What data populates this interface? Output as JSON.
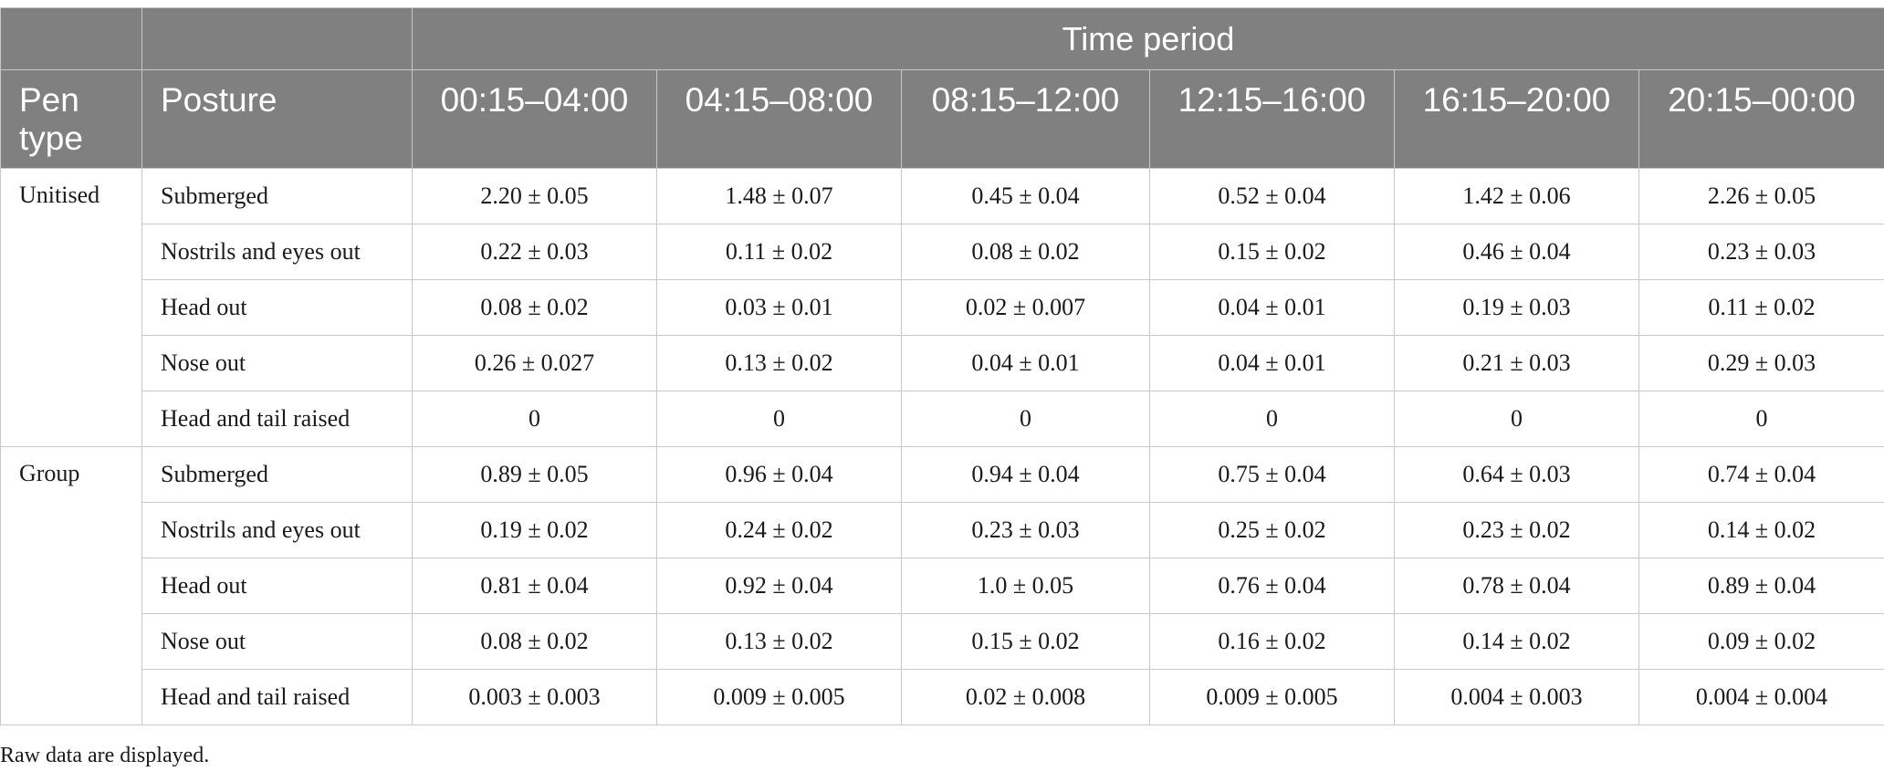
{
  "header": {
    "time_period_label": "Time period",
    "pen_type_label": "Pen type",
    "posture_label": "Posture",
    "time_columns": [
      "00:15–04:00",
      "04:15–08:00",
      "08:15–12:00",
      "12:15–16:00",
      "16:15–20:00",
      "20:15–00:00"
    ]
  },
  "groups": [
    {
      "pen_type": "Unitised",
      "rows": [
        {
          "posture": "Submerged",
          "values": [
            "2.20 ± 0.05",
            "1.48 ± 0.07",
            "0.45 ± 0.04",
            "0.52 ± 0.04",
            "1.42 ± 0.06",
            "2.26 ± 0.05"
          ]
        },
        {
          "posture": "Nostrils and eyes out",
          "values": [
            "0.22 ± 0.03",
            "0.11 ± 0.02",
            "0.08 ± 0.02",
            "0.15 ± 0.02",
            "0.46 ± 0.04",
            "0.23 ± 0.03"
          ]
        },
        {
          "posture": "Head out",
          "values": [
            "0.08 ± 0.02",
            "0.03 ± 0.01",
            "0.02 ± 0.007",
            "0.04 ± 0.01",
            "0.19 ± 0.03",
            "0.11 ± 0.02"
          ]
        },
        {
          "posture": "Nose out",
          "values": [
            "0.26 ± 0.027",
            "0.13 ± 0.02",
            "0.04 ± 0.01",
            "0.04 ± 0.01",
            "0.21 ± 0.03",
            "0.29 ± 0.03"
          ]
        },
        {
          "posture": "Head and tail raised",
          "values": [
            "0",
            "0",
            "0",
            "0",
            "0",
            "0"
          ]
        }
      ]
    },
    {
      "pen_type": "Group",
      "rows": [
        {
          "posture": "Submerged",
          "values": [
            "0.89 ± 0.05",
            "0.96 ± 0.04",
            "0.94 ± 0.04",
            "0.75 ± 0.04",
            "0.64 ± 0.03",
            "0.74 ± 0.04"
          ]
        },
        {
          "posture": "Nostrils and eyes out",
          "values": [
            "0.19 ± 0.02",
            "0.24 ± 0.02",
            "0.23 ± 0.03",
            "0.25 ± 0.02",
            "0.23 ± 0.02",
            "0.14 ± 0.02"
          ]
        },
        {
          "posture": "Head out",
          "values": [
            "0.81 ± 0.04",
            "0.92 ± 0.04",
            "1.0 ± 0.05",
            "0.76 ± 0.04",
            "0.78 ± 0.04",
            "0.89 ± 0.04"
          ]
        },
        {
          "posture": "Nose out",
          "values": [
            "0.08 ± 0.02",
            "0.13 ± 0.02",
            "0.15 ± 0.02",
            "0.16 ± 0.02",
            "0.14 ± 0.02",
            "0.09 ± 0.02"
          ]
        },
        {
          "posture": "Head and tail raised",
          "values": [
            "0.003 ± 0.003",
            "0.009 ± 0.005",
            "0.02 ± 0.008",
            "0.009 ± 0.005",
            "0.004 ± 0.003",
            "0.004 ± 0.004"
          ]
        }
      ]
    }
  ],
  "footnote": "Raw data are displayed.",
  "colors": {
    "header_bg": "#808080",
    "header_text": "#ffffff",
    "grid": "#c8c8c8"
  }
}
